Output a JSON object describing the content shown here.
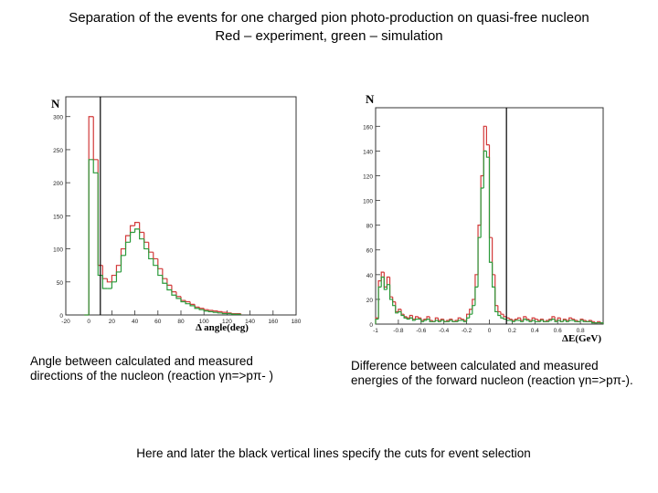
{
  "header": {
    "title": "Separation of the events for one charged pion photo-production on quasi-free nucleon",
    "subtitle": "Red – experiment, green – simulation"
  },
  "colors": {
    "experiment": "#d23a3a",
    "simulation": "#2a9a3a",
    "cut_line": "#000000"
  },
  "chart_data": [
    {
      "type": "bar",
      "ylabel": "N",
      "xlabel": "Δ angle(deg)",
      "xlim": [
        -20,
        180
      ],
      "ylim": [
        0,
        330
      ],
      "xticks": [
        "-20",
        "0",
        "20",
        "40",
        "60",
        "80",
        "100",
        "120",
        "140",
        "160",
        "180"
      ],
      "yticks": [
        "0",
        "50",
        "100",
        "150",
        "200",
        "250",
        "300"
      ],
      "cut_x": [
        10
      ],
      "bin_width": 4,
      "x": [
        -2,
        2,
        6,
        10,
        14,
        18,
        22,
        26,
        30,
        34,
        38,
        42,
        46,
        50,
        54,
        58,
        62,
        66,
        70,
        74,
        78,
        82,
        86,
        90,
        94,
        98,
        102,
        106,
        110,
        114,
        118,
        122,
        126,
        130
      ],
      "series": [
        {
          "name": "experiment",
          "values": [
            0,
            300,
            235,
            75,
            55,
            50,
            60,
            75,
            100,
            120,
            135,
            140,
            125,
            110,
            95,
            85,
            70,
            55,
            45,
            35,
            28,
            22,
            20,
            16,
            12,
            10,
            8,
            7,
            6,
            5,
            4,
            3,
            2,
            2
          ]
        },
        {
          "name": "simulation",
          "values": [
            0,
            235,
            215,
            60,
            40,
            40,
            50,
            65,
            90,
            110,
            125,
            130,
            115,
            100,
            85,
            75,
            60,
            48,
            38,
            30,
            25,
            20,
            17,
            14,
            10,
            8,
            6,
            5,
            4,
            3,
            2,
            2,
            1,
            1
          ]
        }
      ]
    },
    {
      "type": "bar",
      "ylabel": "N",
      "xlabel": "ΔE(GeV)",
      "xlim": [
        -1.0,
        1.0
      ],
      "ylim": [
        0,
        175
      ],
      "xticks": [
        "-1",
        "-0.8",
        "-0.6",
        "-0.4",
        "-0.2",
        "0",
        "0.2",
        "0.4",
        "0.6",
        "0.8"
      ],
      "yticks": [
        "0",
        "20",
        "40",
        "60",
        "80",
        "100",
        "120",
        "140",
        "160"
      ],
      "cut_x": [
        0.15
      ],
      "bin_width": 0.025,
      "x": [
        -0.9875,
        -0.9625,
        -0.9375,
        -0.9125,
        -0.8875,
        -0.8625,
        -0.8375,
        -0.8125,
        -0.7875,
        -0.7625,
        -0.7375,
        -0.7125,
        -0.6875,
        -0.6625,
        -0.6375,
        -0.6125,
        -0.5875,
        -0.5625,
        -0.5375,
        -0.5125,
        -0.4875,
        -0.4625,
        -0.4375,
        -0.4125,
        -0.3875,
        -0.3625,
        -0.3375,
        -0.3125,
        -0.2875,
        -0.2625,
        -0.2375,
        -0.2125,
        -0.1875,
        -0.1625,
        -0.1375,
        -0.1125,
        -0.0875,
        -0.0625,
        -0.0375,
        -0.0125,
        0.0125,
        0.0375,
        0.0625,
        0.0875,
        0.1125,
        0.1375,
        0.1625,
        0.1875,
        0.2125,
        0.2375,
        0.2625,
        0.2875,
        0.3125,
        0.3375,
        0.3625,
        0.3875,
        0.4125,
        0.4375,
        0.4625,
        0.4875,
        0.5125,
        0.5375,
        0.5625,
        0.5875,
        0.6125,
        0.6375,
        0.6625,
        0.6875,
        0.7125,
        0.7375,
        0.7625,
        0.7875,
        0.8125,
        0.8375,
        0.8625,
        0.8875,
        0.9125,
        0.9375,
        0.9625,
        0.9875
      ],
      "series": [
        {
          "name": "experiment",
          "values": [
            5,
            35,
            42,
            30,
            38,
            22,
            18,
            10,
            12,
            8,
            6,
            5,
            7,
            4,
            6,
            5,
            3,
            4,
            6,
            3,
            2,
            5,
            3,
            4,
            2,
            3,
            4,
            2,
            3,
            5,
            4,
            3,
            8,
            12,
            20,
            40,
            80,
            120,
            160,
            145,
            70,
            40,
            15,
            10,
            8,
            6,
            5,
            4,
            3,
            4,
            5,
            3,
            6,
            4,
            3,
            5,
            4,
            3,
            4,
            2,
            3,
            4,
            6,
            3,
            5,
            2,
            4,
            3,
            5,
            4,
            3,
            2,
            4,
            3,
            2,
            3,
            2,
            1,
            2,
            1
          ]
        },
        {
          "name": "simulation",
          "values": [
            4,
            30,
            38,
            28,
            32,
            20,
            15,
            9,
            10,
            7,
            5,
            4,
            5,
            3,
            4,
            4,
            2,
            3,
            4,
            2,
            2,
            3,
            2,
            3,
            2,
            2,
            3,
            2,
            2,
            3,
            3,
            2,
            5,
            8,
            15,
            30,
            70,
            110,
            140,
            135,
            50,
            30,
            10,
            7,
            5,
            4,
            3,
            3,
            2,
            3,
            3,
            2,
            4,
            3,
            2,
            3,
            2,
            2,
            3,
            2,
            2,
            3,
            4,
            2,
            3,
            2,
            3,
            2,
            3,
            3,
            2,
            2,
            3,
            2,
            2,
            2,
            1,
            1,
            1,
            1
          ]
        }
      ]
    }
  ],
  "captions": {
    "left": "Angle between calculated and measured directions of the nucleon (reaction γn=>pπ- )",
    "right": "Difference between calculated and measured energies of the forward nucleon (reaction γn=>pπ-)."
  },
  "footer": "Here and later the black vertical lines specify the cuts for event selection"
}
